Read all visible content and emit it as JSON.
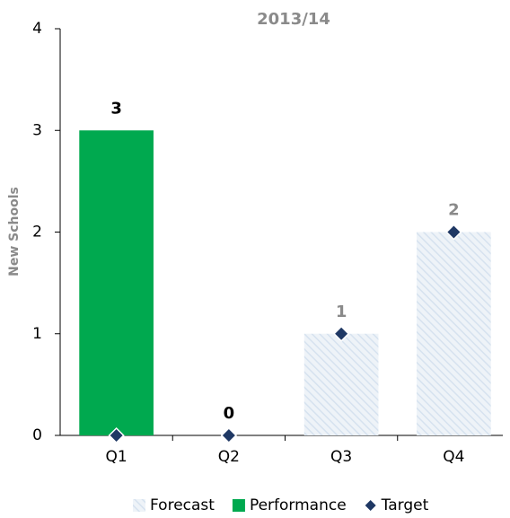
{
  "chart_data": {
    "type": "bar",
    "title": "2013/14",
    "y_label": "New Schools",
    "categories": [
      "Q1",
      "Q2",
      "Q3",
      "Q4"
    ],
    "series": [
      {
        "name": "Forecast",
        "color": "#d6e2ef",
        "pattern": "hatch",
        "values": [
          null,
          null,
          1,
          2
        ]
      },
      {
        "name": "Performance",
        "color": "#00a94f",
        "values": [
          3,
          0,
          null,
          null
        ]
      },
      {
        "name": "Target",
        "color": "#1f3864",
        "marker": "diamond",
        "values": [
          0,
          0,
          1,
          2
        ]
      }
    ],
    "ylim": [
      0,
      4
    ],
    "yticks": [
      0,
      1,
      2,
      3,
      4
    ],
    "grid": false,
    "legend": "bottom"
  }
}
